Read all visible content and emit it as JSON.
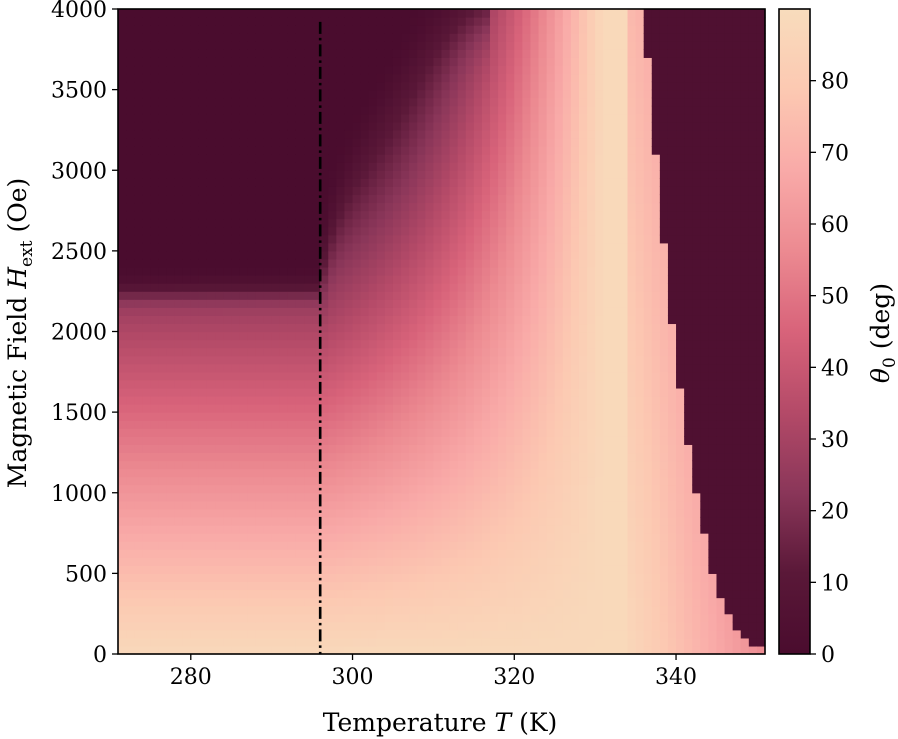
{
  "chart_data": {
    "type": "heatmap",
    "title": "",
    "xlabel": {
      "prefix": "Temperature ",
      "symbol": "T",
      "suffix": " (K)"
    },
    "ylabel": {
      "prefix": "Magnetic Field ",
      "symbol": "H",
      "subscript": "ext",
      "suffix": " (Oe)"
    },
    "colorbar_label": {
      "symbol": "θ",
      "subscript": "0",
      "suffix": " (deg)"
    },
    "xlim": [
      271,
      351
    ],
    "ylim": [
      0,
      4000
    ],
    "clim": [
      0,
      90
    ],
    "x_ticks": [
      280,
      300,
      320,
      340
    ],
    "y_ticks": [
      0,
      500,
      1000,
      1500,
      2000,
      2500,
      3000,
      3500,
      4000
    ],
    "colorbar_ticks": [
      0,
      10,
      20,
      30,
      40,
      50,
      60,
      70,
      80
    ],
    "colormap": [
      "#4a0c2e",
      "#5a1838",
      "#8a3659",
      "#b44a68",
      "#d8637a",
      "#ec8a91",
      "#f9aaa8",
      "#fcc9b2",
      "#f8dcbc"
    ],
    "reference_line": {
      "x": 296,
      "style": "dash-dot",
      "color": "#000000"
    },
    "grid": false,
    "grid_points": {
      "x": [
        271,
        275,
        280,
        285,
        290,
        295,
        300,
        305,
        310,
        315,
        320,
        325,
        328,
        331,
        333,
        335,
        337,
        339,
        340,
        342,
        344,
        346,
        348,
        350,
        351
      ],
      "y": [
        0,
        100,
        250,
        400,
        600,
        800,
        1000,
        1200,
        1500,
        1800,
        2100,
        2300,
        2500,
        2800,
        3200,
        3600,
        4000
      ]
    }
  }
}
